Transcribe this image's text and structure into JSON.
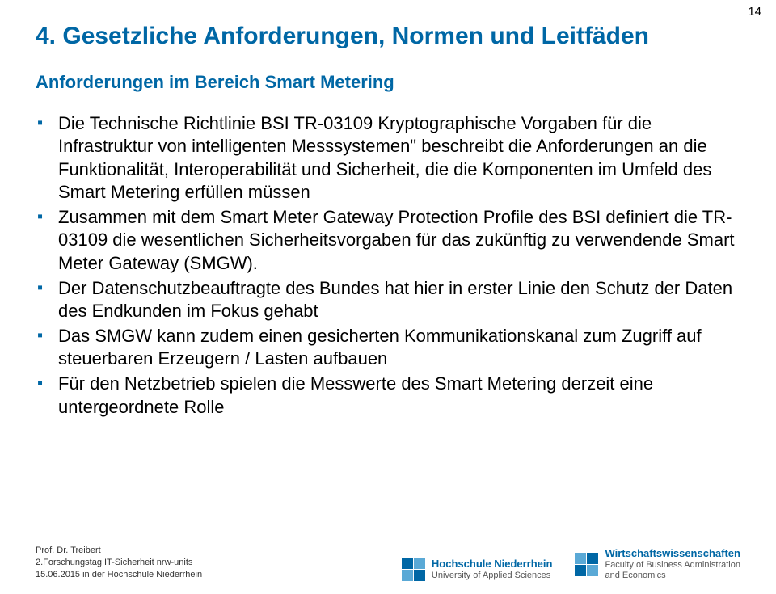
{
  "page_number": "14",
  "title": "4. Gesetzliche Anforderungen, Normen und Leitfäden",
  "subtitle": "Anforderungen im Bereich Smart Metering",
  "intro": "Die Technische Richtlinie BSI TR-03109 Kryptographische Vorgaben für die Infrastruktur von intelligenten Messsystemen\" beschreibt die Anforderungen an die Funktionalität, Interoperabilität und Sicherheit, die die Komponenten im Umfeld des Smart Metering erfüllen müssen",
  "bullets": [
    "Zusammen mit dem Smart Meter Gateway Protection Profile des BSI definiert die TR-03109 die wesentlichen Sicherheitsvorgaben für das zukünftig zu verwendende Smart Meter Gateway (SMGW).",
    "Der Datenschutzbeauftragte des Bundes hat hier in erster Linie den Schutz der Daten des Endkunden im Fokus gehabt",
    "Das SMGW kann zudem einen gesicherten Kommunikationskanal zum Zugriff auf steuerbaren Erzeugern / Lasten aufbauen",
    "Für den Netzbetrieb spielen die Messwerte des Smart Metering derzeit eine untergeordnete Rolle"
  ],
  "footer": {
    "line1": "Prof. Dr. Treibert",
    "line2": "2.Forschungstag IT-Sicherheit nrw-units",
    "line3": "15.06.2015 in der Hochschule Niederrhein"
  },
  "logo1": {
    "main": "Hochschule Niederrhein",
    "sub": "University of Applied Sciences"
  },
  "logo2": {
    "main": "Wirtschaftswissenschaften",
    "sub1": "Faculty of Business Administration",
    "sub2": "and Economics"
  }
}
